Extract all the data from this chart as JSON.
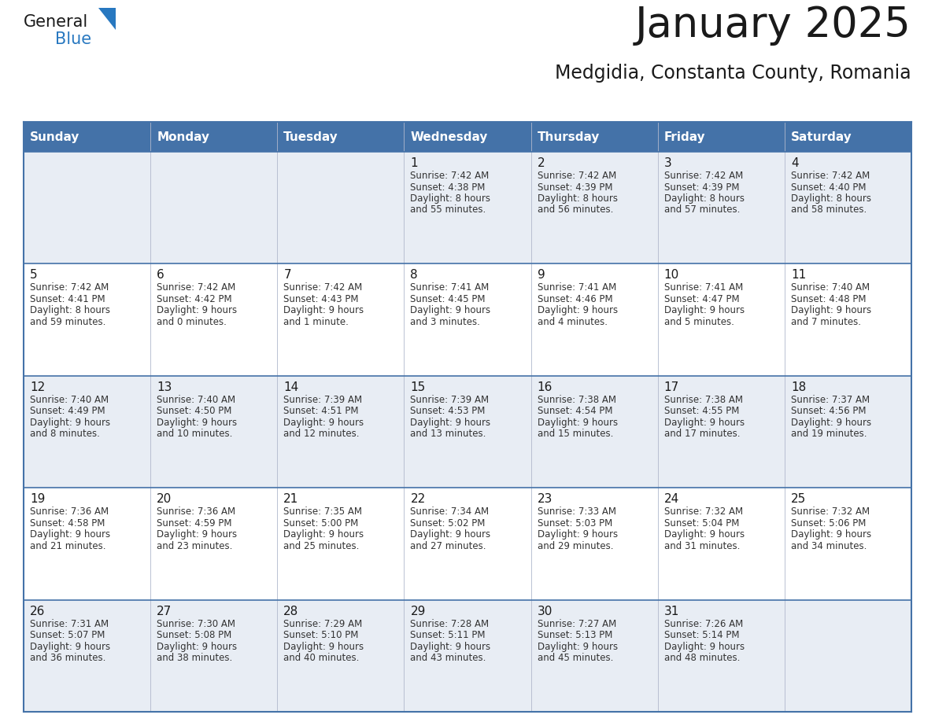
{
  "title": "January 2025",
  "subtitle": "Medgidia, Constanta County, Romania",
  "header_bg": "#4472a8",
  "header_text_color": "#ffffff",
  "cell_bg_even": "#e8edf4",
  "cell_bg_odd": "#ffffff",
  "border_color": "#4472a8",
  "day_names": [
    "Sunday",
    "Monday",
    "Tuesday",
    "Wednesday",
    "Thursday",
    "Friday",
    "Saturday"
  ],
  "title_color": "#1a1a1a",
  "subtitle_color": "#1a1a1a",
  "day_number_color": "#1a1a1a",
  "cell_text_color": "#333333",
  "logo_general_color": "#1a1a1a",
  "logo_blue_color": "#2878c0",
  "calendar": [
    [
      null,
      null,
      null,
      {
        "day": "1",
        "sunrise": "7:42 AM",
        "sunset": "4:38 PM",
        "daylight_line1": "8 hours",
        "daylight_line2": "and 55 minutes."
      },
      {
        "day": "2",
        "sunrise": "7:42 AM",
        "sunset": "4:39 PM",
        "daylight_line1": "8 hours",
        "daylight_line2": "and 56 minutes."
      },
      {
        "day": "3",
        "sunrise": "7:42 AM",
        "sunset": "4:39 PM",
        "daylight_line1": "8 hours",
        "daylight_line2": "and 57 minutes."
      },
      {
        "day": "4",
        "sunrise": "7:42 AM",
        "sunset": "4:40 PM",
        "daylight_line1": "8 hours",
        "daylight_line2": "and 58 minutes."
      }
    ],
    [
      {
        "day": "5",
        "sunrise": "7:42 AM",
        "sunset": "4:41 PM",
        "daylight_line1": "8 hours",
        "daylight_line2": "and 59 minutes."
      },
      {
        "day": "6",
        "sunrise": "7:42 AM",
        "sunset": "4:42 PM",
        "daylight_line1": "9 hours",
        "daylight_line2": "and 0 minutes."
      },
      {
        "day": "7",
        "sunrise": "7:42 AM",
        "sunset": "4:43 PM",
        "daylight_line1": "9 hours",
        "daylight_line2": "and 1 minute."
      },
      {
        "day": "8",
        "sunrise": "7:41 AM",
        "sunset": "4:45 PM",
        "daylight_line1": "9 hours",
        "daylight_line2": "and 3 minutes."
      },
      {
        "day": "9",
        "sunrise": "7:41 AM",
        "sunset": "4:46 PM",
        "daylight_line1": "9 hours",
        "daylight_line2": "and 4 minutes."
      },
      {
        "day": "10",
        "sunrise": "7:41 AM",
        "sunset": "4:47 PM",
        "daylight_line1": "9 hours",
        "daylight_line2": "and 5 minutes."
      },
      {
        "day": "11",
        "sunrise": "7:40 AM",
        "sunset": "4:48 PM",
        "daylight_line1": "9 hours",
        "daylight_line2": "and 7 minutes."
      }
    ],
    [
      {
        "day": "12",
        "sunrise": "7:40 AM",
        "sunset": "4:49 PM",
        "daylight_line1": "9 hours",
        "daylight_line2": "and 8 minutes."
      },
      {
        "day": "13",
        "sunrise": "7:40 AM",
        "sunset": "4:50 PM",
        "daylight_line1": "9 hours",
        "daylight_line2": "and 10 minutes."
      },
      {
        "day": "14",
        "sunrise": "7:39 AM",
        "sunset": "4:51 PM",
        "daylight_line1": "9 hours",
        "daylight_line2": "and 12 minutes."
      },
      {
        "day": "15",
        "sunrise": "7:39 AM",
        "sunset": "4:53 PM",
        "daylight_line1": "9 hours",
        "daylight_line2": "and 13 minutes."
      },
      {
        "day": "16",
        "sunrise": "7:38 AM",
        "sunset": "4:54 PM",
        "daylight_line1": "9 hours",
        "daylight_line2": "and 15 minutes."
      },
      {
        "day": "17",
        "sunrise": "7:38 AM",
        "sunset": "4:55 PM",
        "daylight_line1": "9 hours",
        "daylight_line2": "and 17 minutes."
      },
      {
        "day": "18",
        "sunrise": "7:37 AM",
        "sunset": "4:56 PM",
        "daylight_line1": "9 hours",
        "daylight_line2": "and 19 minutes."
      }
    ],
    [
      {
        "day": "19",
        "sunrise": "7:36 AM",
        "sunset": "4:58 PM",
        "daylight_line1": "9 hours",
        "daylight_line2": "and 21 minutes."
      },
      {
        "day": "20",
        "sunrise": "7:36 AM",
        "sunset": "4:59 PM",
        "daylight_line1": "9 hours",
        "daylight_line2": "and 23 minutes."
      },
      {
        "day": "21",
        "sunrise": "7:35 AM",
        "sunset": "5:00 PM",
        "daylight_line1": "9 hours",
        "daylight_line2": "and 25 minutes."
      },
      {
        "day": "22",
        "sunrise": "7:34 AM",
        "sunset": "5:02 PM",
        "daylight_line1": "9 hours",
        "daylight_line2": "and 27 minutes."
      },
      {
        "day": "23",
        "sunrise": "7:33 AM",
        "sunset": "5:03 PM",
        "daylight_line1": "9 hours",
        "daylight_line2": "and 29 minutes."
      },
      {
        "day": "24",
        "sunrise": "7:32 AM",
        "sunset": "5:04 PM",
        "daylight_line1": "9 hours",
        "daylight_line2": "and 31 minutes."
      },
      {
        "day": "25",
        "sunrise": "7:32 AM",
        "sunset": "5:06 PM",
        "daylight_line1": "9 hours",
        "daylight_line2": "and 34 minutes."
      }
    ],
    [
      {
        "day": "26",
        "sunrise": "7:31 AM",
        "sunset": "5:07 PM",
        "daylight_line1": "9 hours",
        "daylight_line2": "and 36 minutes."
      },
      {
        "day": "27",
        "sunrise": "7:30 AM",
        "sunset": "5:08 PM",
        "daylight_line1": "9 hours",
        "daylight_line2": "and 38 minutes."
      },
      {
        "day": "28",
        "sunrise": "7:29 AM",
        "sunset": "5:10 PM",
        "daylight_line1": "9 hours",
        "daylight_line2": "and 40 minutes."
      },
      {
        "day": "29",
        "sunrise": "7:28 AM",
        "sunset": "5:11 PM",
        "daylight_line1": "9 hours",
        "daylight_line2": "and 43 minutes."
      },
      {
        "day": "30",
        "sunrise": "7:27 AM",
        "sunset": "5:13 PM",
        "daylight_line1": "9 hours",
        "daylight_line2": "and 45 minutes."
      },
      {
        "day": "31",
        "sunrise": "7:26 AM",
        "sunset": "5:14 PM",
        "daylight_line1": "9 hours",
        "daylight_line2": "and 48 minutes."
      },
      null
    ]
  ]
}
